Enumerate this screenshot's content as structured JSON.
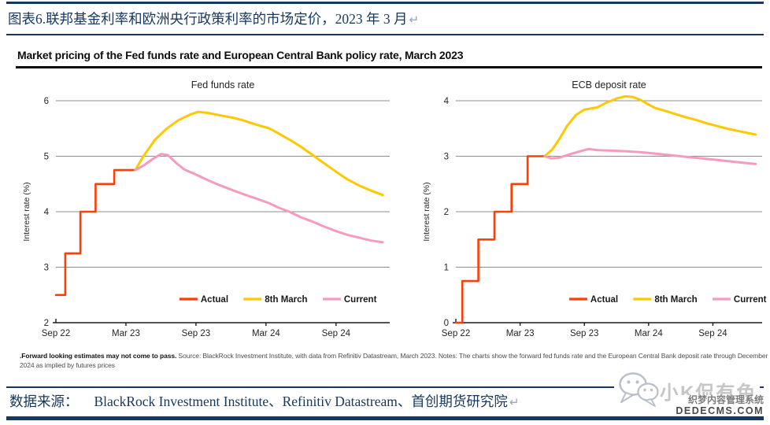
{
  "page": {
    "header_title": "图表6.联邦基金利率和欧洲央行政策利率的市场定价，2023 年 3 月",
    "return_mark": "↵",
    "chart_block_title": "Market pricing of the Fed funds rate and European Central Bank policy rate, March 2023",
    "footnote_bold": ".Forward looking estimates may not come to pass.",
    "footnote_rest": " Source: BlackRock Investment Institute, with data from Refinitiv Datastream, March 2023. Notes: The charts show the forward fed funds rate and the European Central Bank deposit rate through December 2024 as implied by futures prices",
    "footer_label": "数据来源：",
    "footer_sources": "BlackRock Investment Institute、Refinitiv Datastream、首创期货研究院",
    "watermark_name": "小K侃有色",
    "watermark_sub1": "织梦内容管理系统",
    "watermark_sub2": "DEDECMS.COM"
  },
  "colors": {
    "navy": "#17375E",
    "actual_red": "#FB3F06",
    "march8_yellow": "#FFC800",
    "current_pink": "#F79BBE",
    "grid_gray": "#8F8F8F"
  },
  "chart_data": [
    {
      "type": "line",
      "title": "Fed funds rate",
      "ylabel": "Interest rate (%)",
      "ylim": [
        2,
        6
      ],
      "yticks": [
        2,
        3,
        4,
        5,
        6
      ],
      "xlim": [
        0,
        28.6
      ],
      "x_unit": "months since Sep 2022",
      "grid": true,
      "legend_position": "inside-bottom",
      "xticks": [
        {
          "pos": 0,
          "label": "Sep 22"
        },
        {
          "pos": 6,
          "label": "Mar 23"
        },
        {
          "pos": 12,
          "label": "Sep 23"
        },
        {
          "pos": 18,
          "label": "Mar 24"
        },
        {
          "pos": 24,
          "label": "Sep 24"
        }
      ],
      "series": [
        {
          "name": "Actual",
          "color": "#FB3F06",
          "width": 2.6,
          "points": [
            [
              0,
              2.5
            ],
            [
              0.8,
              2.5
            ],
            [
              0.8,
              3.25
            ],
            [
              2.1,
              3.25
            ],
            [
              2.1,
              4.0
            ],
            [
              3.4,
              4.0
            ],
            [
              3.4,
              4.5
            ],
            [
              5.0,
              4.5
            ],
            [
              5.0,
              4.75
            ],
            [
              6.8,
              4.75
            ]
          ]
        },
        {
          "name": "8th March",
          "color": "#FFC800",
          "width": 3,
          "points": [
            [
              6.8,
              4.75
            ],
            [
              7.5,
              5.0
            ],
            [
              8.5,
              5.3
            ],
            [
              9.5,
              5.5
            ],
            [
              10.5,
              5.65
            ],
            [
              11.5,
              5.75
            ],
            [
              12.2,
              5.8
            ],
            [
              13,
              5.78
            ],
            [
              14,
              5.74
            ],
            [
              15,
              5.7
            ],
            [
              16,
              5.65
            ],
            [
              17,
              5.58
            ],
            [
              18.3,
              5.5
            ],
            [
              19,
              5.42
            ],
            [
              20,
              5.3
            ],
            [
              21,
              5.17
            ],
            [
              22,
              5.02
            ],
            [
              23,
              4.87
            ],
            [
              24,
              4.72
            ],
            [
              25,
              4.58
            ],
            [
              26,
              4.47
            ],
            [
              27,
              4.38
            ],
            [
              28,
              4.3
            ]
          ]
        },
        {
          "name": "Current",
          "color": "#F79BBE",
          "width": 3,
          "points": [
            [
              6.8,
              4.75
            ],
            [
              7.5,
              4.83
            ],
            [
              8.3,
              4.95
            ],
            [
              9,
              5.04
            ],
            [
              9.6,
              5.02
            ],
            [
              10.3,
              4.88
            ],
            [
              11,
              4.76
            ],
            [
              12,
              4.67
            ],
            [
              13,
              4.57
            ],
            [
              14,
              4.48
            ],
            [
              15,
              4.4
            ],
            [
              16,
              4.32
            ],
            [
              17,
              4.25
            ],
            [
              18.3,
              4.15
            ],
            [
              19,
              4.08
            ],
            [
              20,
              4.0
            ],
            [
              21,
              3.9
            ],
            [
              22,
              3.82
            ],
            [
              23,
              3.73
            ],
            [
              24,
              3.65
            ],
            [
              25,
              3.58
            ],
            [
              26,
              3.53
            ],
            [
              27,
              3.48
            ],
            [
              28,
              3.45
            ]
          ]
        }
      ]
    },
    {
      "type": "line",
      "title": "ECB deposit rate",
      "ylabel": "Interest rate (%)",
      "ylim": [
        0,
        4
      ],
      "yticks": [
        0,
        1,
        2,
        3,
        4
      ],
      "xlim": [
        0,
        28.6
      ],
      "x_unit": "months since Sep 2022",
      "grid": true,
      "legend_position": "inside-bottom",
      "xticks": [
        {
          "pos": 0,
          "label": "Sep 22"
        },
        {
          "pos": 6,
          "label": "Mar 23"
        },
        {
          "pos": 12,
          "label": "Sep 23"
        },
        {
          "pos": 18,
          "label": "Mar 24"
        },
        {
          "pos": 24,
          "label": "Sep 24"
        }
      ],
      "series": [
        {
          "name": "Actual",
          "color": "#FB3F06",
          "width": 2.6,
          "points": [
            [
              0,
              0
            ],
            [
              0.6,
              0
            ],
            [
              0.6,
              0.75
            ],
            [
              2.1,
              0.75
            ],
            [
              2.1,
              1.5
            ],
            [
              3.6,
              1.5
            ],
            [
              3.6,
              2.0
            ],
            [
              5.2,
              2.0
            ],
            [
              5.2,
              2.5
            ],
            [
              6.7,
              2.5
            ],
            [
              6.7,
              3.0
            ],
            [
              8.3,
              3.0
            ]
          ]
        },
        {
          "name": "8th March",
          "color": "#FFC800",
          "width": 3,
          "points": [
            [
              8.3,
              3.0
            ],
            [
              9,
              3.12
            ],
            [
              9.7,
              3.32
            ],
            [
              10.4,
              3.55
            ],
            [
              11.2,
              3.74
            ],
            [
              12,
              3.84
            ],
            [
              12.6,
              3.86
            ],
            [
              13.2,
              3.88
            ],
            [
              14,
              3.96
            ],
            [
              15,
              4.04
            ],
            [
              15.8,
              4.08
            ],
            [
              16.5,
              4.07
            ],
            [
              17.2,
              4.02
            ],
            [
              18,
              3.93
            ],
            [
              18.6,
              3.87
            ],
            [
              19.5,
              3.82
            ],
            [
              20.5,
              3.76
            ],
            [
              21.5,
              3.7
            ],
            [
              22.5,
              3.65
            ],
            [
              23.5,
              3.59
            ],
            [
              24.5,
              3.54
            ],
            [
              25.5,
              3.49
            ],
            [
              26.5,
              3.45
            ],
            [
              27.2,
              3.42
            ],
            [
              28,
              3.39
            ]
          ]
        },
        {
          "name": "Current",
          "color": "#F79BBE",
          "width": 3,
          "points": [
            [
              8.3,
              3.0
            ],
            [
              8.9,
              2.96
            ],
            [
              9.6,
              2.97
            ],
            [
              10.4,
              3.02
            ],
            [
              11.4,
              3.08
            ],
            [
              12.4,
              3.13
            ],
            [
              13.2,
              3.11
            ],
            [
              14.5,
              3.1
            ],
            [
              16,
              3.09
            ],
            [
              17.5,
              3.07
            ],
            [
              18.5,
              3.05
            ],
            [
              20,
              3.02
            ],
            [
              21.5,
              2.99
            ],
            [
              23,
              2.96
            ],
            [
              24.5,
              2.93
            ],
            [
              26,
              2.9
            ],
            [
              27,
              2.88
            ],
            [
              28,
              2.86
            ]
          ]
        }
      ]
    }
  ]
}
